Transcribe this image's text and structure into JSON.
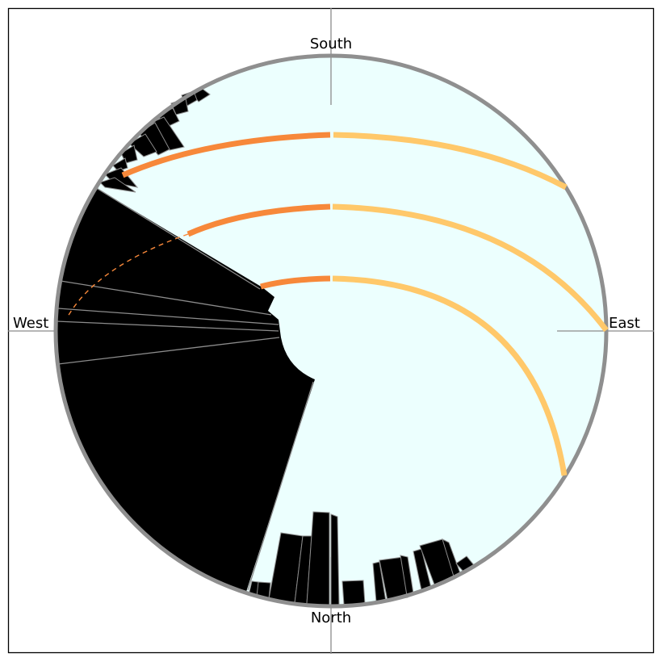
{
  "directions": {
    "south": "South",
    "north": "North",
    "east": "East",
    "west": "West"
  },
  "colors": {
    "sky": "#ecfffe",
    "obstruction": "#000000",
    "obstruction_edge": "#8c8c8c",
    "horizon_ring": "#8f8f8f",
    "sun_path_morning": "#ffc86a",
    "sun_path_afternoon": "#f7883a",
    "frame": "#000000"
  },
  "sun_paths": [
    {
      "name": "",
      "shaded_dashed": true
    },
    {
      "name": "",
      "shaded_dashed": true
    },
    {
      "name": "",
      "shaded_dashed": false
    }
  ]
}
